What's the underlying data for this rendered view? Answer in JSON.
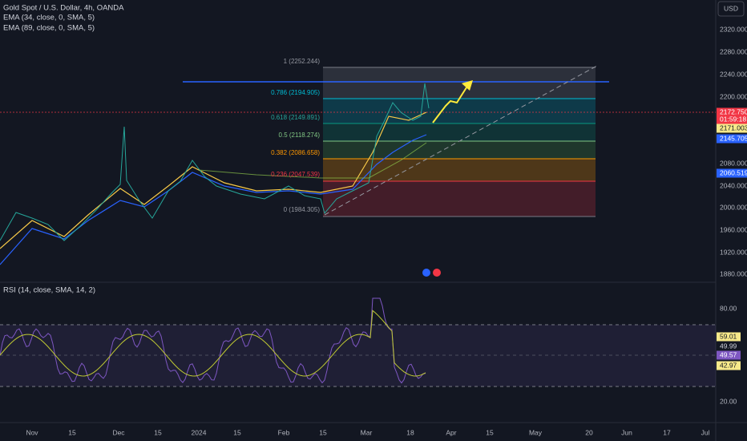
{
  "header": {
    "symbol": "Gold Spot / U.S. Dollar, 4h, OANDA",
    "indicators": [
      "EMA (34, close, 0, SMA, 5)",
      "EMA (89, close, 0, SMA, 5)"
    ],
    "currency": "USD"
  },
  "price_axis": [
    "2320.000",
    "2280.000",
    "2240.000",
    "2200.000",
    "2080.000",
    "2040.000",
    "2000.000",
    "1960.000",
    "1920.000",
    "1880.000"
  ],
  "price_tags": [
    "2172.750",
    "01:59:18",
    "2171.003",
    "2145.705",
    "2060.519"
  ],
  "fib_levels": [
    "1 (2252.244)",
    "0.786 (2194.905)",
    "0.618 (2149.891)",
    "0.5 (2118.274)",
    "0.382 (2086.658)",
    "0.236 (2047.539)",
    "0 (1984.305)"
  ],
  "rsi": {
    "title": "RSI (14, close, SMA, 14, 2)",
    "axis": [
      "80.00",
      "20.00"
    ],
    "tags": [
      "59.01",
      "49.99",
      "49.57",
      "42.97"
    ]
  },
  "time_axis": [
    "Nov",
    "15",
    "Dec",
    "15",
    "2024",
    "15",
    "Feb",
    "15",
    "Mar",
    "18",
    "Apr",
    "15",
    "May",
    "20",
    "Jun",
    "17",
    "Jul"
  ]
}
